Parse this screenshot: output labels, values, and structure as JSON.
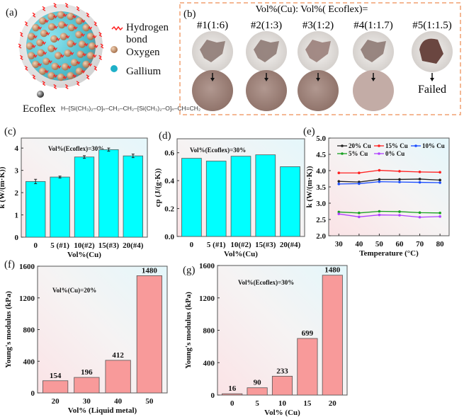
{
  "panel_a": {
    "label": "(a)",
    "legend": {
      "hydrogen_bond_1": "Hydrogen",
      "hydrogen_bond_2": "bond",
      "oxygen": "Oxygen",
      "gallium": "Gallium",
      "ecoflex": "Ecoflex"
    },
    "formula": "H–[Si(CH₃)₂–O]ₙ–CH₂–CH₂–[Si(CH₃)₂–O]ₙ–CH=CH₂",
    "colors": {
      "hydrogen_bond": "#ff2020",
      "oxygen": "#c8946a",
      "gallium": "#3fc6d6",
      "shell": "#d8d8d8"
    }
  },
  "panel_b": {
    "label": "(b)",
    "title": "Vol%(Cu): Vol%( Ecoflex)=",
    "samples": [
      {
        "label": "#1(1:6)",
        "result": ""
      },
      {
        "label": "#2(1:3)",
        "result": ""
      },
      {
        "label": "#3(1:2)",
        "result": ""
      },
      {
        "label": "#4(1:1.7)",
        "result": ""
      },
      {
        "label": "#5(1:1.5)",
        "result": "Failed"
      }
    ],
    "border_color": "#f0a070"
  },
  "chart_data": [
    {
      "id": "c",
      "panel_label": "(c)",
      "type": "bar",
      "annotation": "Vol%(Ecoflex)=30%",
      "categories": [
        "0",
        "5 (#1)",
        "10(#2)",
        "15(#3)",
        "20(#4)"
      ],
      "values": [
        2.5,
        2.7,
        3.6,
        3.93,
        3.65
      ],
      "errors": [
        0.1,
        0.04,
        0.06,
        0.07,
        0.08
      ],
      "xlabel": "Vol%(Cu)",
      "ylabel": "k (W/(m·K))",
      "ylim": [
        0,
        4.45
      ],
      "yticks": [
        0,
        1,
        2,
        3,
        4
      ],
      "bar_color": "#00ffff"
    },
    {
      "id": "d",
      "panel_label": "(d)",
      "type": "bar",
      "annotation": "Vol%(Ecoflex)=30%",
      "categories": [
        "0",
        "5 (#1)",
        "10(#2)",
        "15(#3)",
        "20(#4)"
      ],
      "values": [
        0.56,
        0.54,
        0.575,
        0.585,
        0.5
      ],
      "xlabel": "Vol%(Cu)",
      "ylabel": "cp (J/(g·K))",
      "ylim": [
        0,
        0.7
      ],
      "yticks": [
        "0.0",
        "0.2",
        "0.4",
        "0.6"
      ],
      "bar_color": "#00ffff"
    },
    {
      "id": "e",
      "panel_label": "(e)",
      "type": "line",
      "x": [
        30,
        40,
        50,
        60,
        70,
        80
      ],
      "series": [
        {
          "name": "20% Cu",
          "color": "#222222",
          "values": [
            3.67,
            3.65,
            3.73,
            3.73,
            3.74,
            3.71
          ]
        },
        {
          "name": "15% Cu",
          "color": "#ff2020",
          "values": [
            3.93,
            3.93,
            4.01,
            3.98,
            3.96,
            3.95
          ]
        },
        {
          "name": "10% Cu",
          "color": "#1a4cff",
          "values": [
            3.59,
            3.6,
            3.66,
            3.65,
            3.64,
            3.63
          ]
        },
        {
          "name": "5% Cu",
          "color": "#18a020",
          "values": [
            2.73,
            2.7,
            2.75,
            2.74,
            2.71,
            2.7
          ]
        },
        {
          "name": "0% Cu",
          "color": "#b040ff",
          "values": [
            2.67,
            2.58,
            2.64,
            2.63,
            2.57,
            2.59
          ]
        }
      ],
      "xlabel": "Temperature (°C)",
      "ylabel": "k (W/(m·K))",
      "xlim": [
        25,
        84.5
      ],
      "ylim": [
        2.0,
        5.0
      ],
      "xticks": [
        30,
        40,
        50,
        60,
        70,
        80
      ],
      "yticks": [
        "2.0",
        "2.5",
        "3.0",
        "3.5",
        "4.0",
        "4.5",
        "5.0"
      ],
      "legend": "top"
    },
    {
      "id": "f",
      "panel_label": "(f)",
      "type": "bar",
      "annotation": "Vol%(Cu)=20%",
      "categories": [
        "20",
        "30",
        "40",
        "50"
      ],
      "values": [
        154,
        196,
        412,
        1480
      ],
      "data_labels": [
        "154",
        "196",
        "412",
        "1480"
      ],
      "xlabel": "Vol% (Liquid metal)",
      "ylabel": "Young's modulus (kPa)",
      "ylim": [
        0,
        1600
      ],
      "yticks": [
        0,
        400,
        800,
        1200,
        1600
      ],
      "bar_color": "#f89a9a"
    },
    {
      "id": "g",
      "panel_label": "(g)",
      "type": "bar",
      "annotation": "Vol%(Ecoflex)=30%",
      "categories": [
        "0",
        "5",
        "10",
        "15",
        "20"
      ],
      "values": [
        16,
        90,
        233,
        699,
        1480
      ],
      "data_labels": [
        "16",
        "90",
        "233",
        "699",
        "1480"
      ],
      "xlabel": "Vol% (Cu)",
      "ylabel": "Young's modulus (kPa)",
      "ylim": [
        0,
        1600
      ],
      "yticks": [
        0,
        400,
        800,
        1200,
        1600
      ],
      "bar_color": "#f89a9a"
    }
  ]
}
